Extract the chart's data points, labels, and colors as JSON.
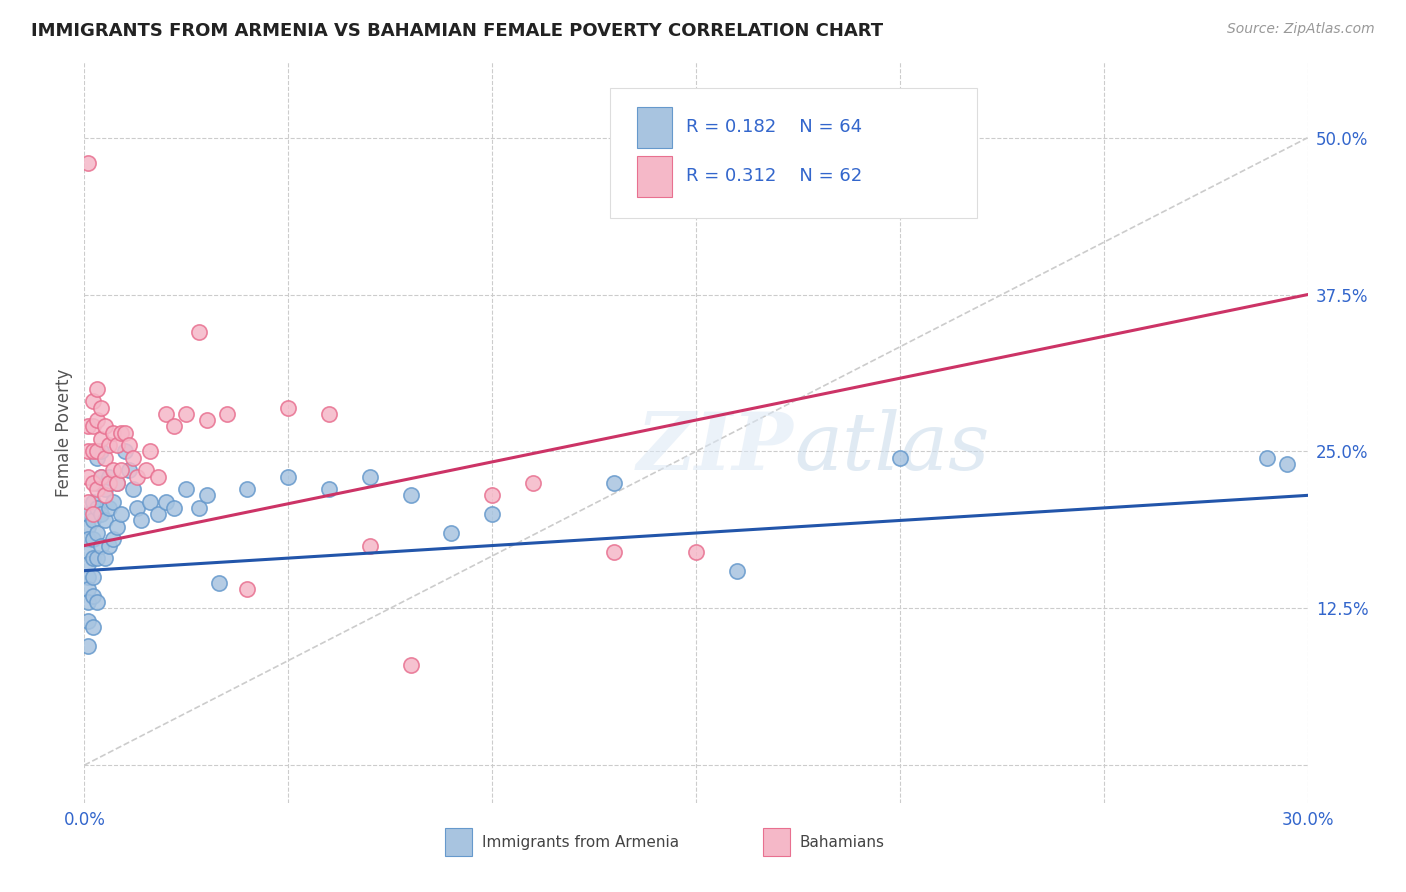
{
  "title": "IMMIGRANTS FROM ARMENIA VS BAHAMIAN FEMALE POVERTY CORRELATION CHART",
  "source": "Source: ZipAtlas.com",
  "ylabel": "Female Poverty",
  "xlim": [
    0.0,
    0.3
  ],
  "ylim": [
    -0.03,
    0.56
  ],
  "xticks": [
    0.0,
    0.05,
    0.1,
    0.15,
    0.2,
    0.25,
    0.3
  ],
  "xticklabels": [
    "0.0%",
    "",
    "",
    "",
    "",
    "",
    "30.0%"
  ],
  "yticks": [
    0.0,
    0.125,
    0.25,
    0.375,
    0.5
  ],
  "yticklabels": [
    "",
    "12.5%",
    "25.0%",
    "37.5%",
    "50.0%"
  ],
  "blue_color": "#a8c4e0",
  "blue_edge": "#6699cc",
  "pink_color": "#f5b8c8",
  "pink_edge": "#e87090",
  "line_blue": "#2255aa",
  "line_pink": "#cc3366",
  "diag_color": "#cccccc",
  "background": "#ffffff",
  "blue_line_x0": 0.0,
  "blue_line_y0": 0.155,
  "blue_line_x1": 0.3,
  "blue_line_y1": 0.215,
  "pink_line_x0": 0.0,
  "pink_line_y0": 0.175,
  "pink_line_x1": 0.3,
  "pink_line_y1": 0.375,
  "blue_x": [
    0.001,
    0.001,
    0.001,
    0.001,
    0.001,
    0.001,
    0.001,
    0.001,
    0.001,
    0.001,
    0.002,
    0.002,
    0.002,
    0.002,
    0.002,
    0.002,
    0.002,
    0.003,
    0.003,
    0.003,
    0.003,
    0.003,
    0.003,
    0.004,
    0.004,
    0.004,
    0.004,
    0.005,
    0.005,
    0.005,
    0.006,
    0.006,
    0.006,
    0.007,
    0.007,
    0.008,
    0.008,
    0.009,
    0.01,
    0.011,
    0.012,
    0.013,
    0.014,
    0.016,
    0.018,
    0.02,
    0.022,
    0.025,
    0.028,
    0.03,
    0.033,
    0.04,
    0.05,
    0.06,
    0.07,
    0.08,
    0.09,
    0.1,
    0.13,
    0.16,
    0.2,
    0.29,
    0.295
  ],
  "blue_y": [
    0.2,
    0.19,
    0.18,
    0.17,
    0.16,
    0.15,
    0.14,
    0.13,
    0.115,
    0.095,
    0.21,
    0.195,
    0.18,
    0.165,
    0.15,
    0.135,
    0.11,
    0.245,
    0.225,
    0.205,
    0.185,
    0.165,
    0.13,
    0.25,
    0.23,
    0.2,
    0.175,
    0.22,
    0.195,
    0.165,
    0.23,
    0.205,
    0.175,
    0.21,
    0.18,
    0.225,
    0.19,
    0.2,
    0.25,
    0.235,
    0.22,
    0.205,
    0.195,
    0.21,
    0.2,
    0.21,
    0.205,
    0.22,
    0.205,
    0.215,
    0.145,
    0.22,
    0.23,
    0.22,
    0.23,
    0.215,
    0.185,
    0.2,
    0.225,
    0.155,
    0.245,
    0.245,
    0.24
  ],
  "pink_x": [
    0.001,
    0.001,
    0.001,
    0.001,
    0.002,
    0.002,
    0.002,
    0.002,
    0.002,
    0.003,
    0.003,
    0.003,
    0.003,
    0.004,
    0.004,
    0.004,
    0.005,
    0.005,
    0.005,
    0.006,
    0.006,
    0.007,
    0.007,
    0.008,
    0.008,
    0.009,
    0.009,
    0.01,
    0.011,
    0.012,
    0.013,
    0.015,
    0.016,
    0.018,
    0.02,
    0.022,
    0.025,
    0.028,
    0.03,
    0.035,
    0.04,
    0.05,
    0.06,
    0.07,
    0.08,
    0.1,
    0.11,
    0.13,
    0.15,
    0.001
  ],
  "pink_y": [
    0.27,
    0.25,
    0.23,
    0.21,
    0.29,
    0.27,
    0.25,
    0.225,
    0.2,
    0.3,
    0.275,
    0.25,
    0.22,
    0.285,
    0.26,
    0.23,
    0.27,
    0.245,
    0.215,
    0.255,
    0.225,
    0.265,
    0.235,
    0.255,
    0.225,
    0.265,
    0.235,
    0.265,
    0.255,
    0.245,
    0.23,
    0.235,
    0.25,
    0.23,
    0.28,
    0.27,
    0.28,
    0.345,
    0.275,
    0.28,
    0.14,
    0.285,
    0.28,
    0.175,
    0.08,
    0.215,
    0.225,
    0.17,
    0.17,
    0.48
  ]
}
